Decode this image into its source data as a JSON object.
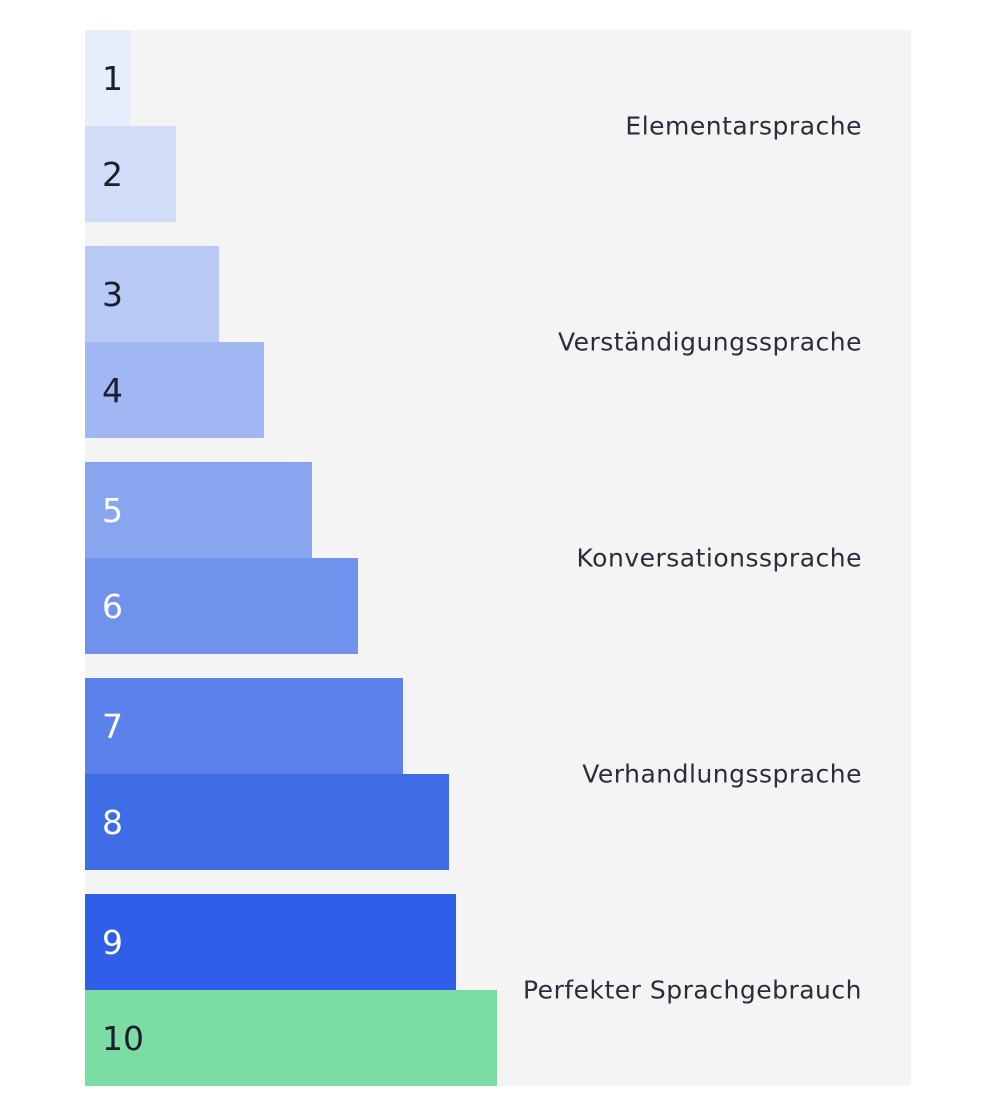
{
  "levels": [
    1,
    2,
    3,
    4,
    5,
    6,
    7,
    8,
    9,
    10
  ],
  "groups": [
    "Elementarsprache",
    "Verständigungssprache",
    "Konversationssprache",
    "Verhandlungssprache",
    "Perfekter Sprachgebrauch"
  ]
}
